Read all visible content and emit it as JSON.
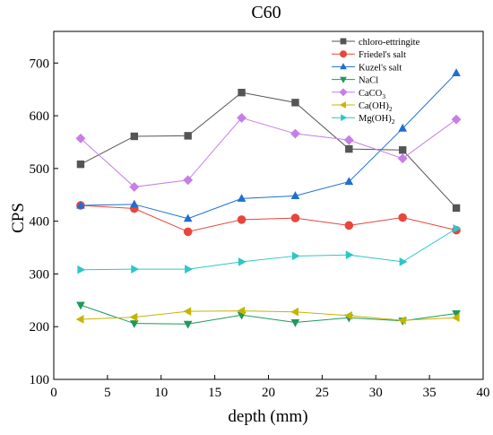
{
  "chart_data": {
    "type": "line",
    "title": "C60",
    "xlabel": "depth (mm)",
    "ylabel": "CPS",
    "xlim": [
      0,
      40
    ],
    "ylim": [
      100,
      760
    ],
    "xticks": [
      0,
      5,
      10,
      15,
      20,
      25,
      30,
      35,
      40
    ],
    "yticks": [
      100,
      200,
      300,
      400,
      500,
      600,
      700
    ],
    "grid": false,
    "legend_position": "top-right",
    "x": [
      2.5,
      7.5,
      12.5,
      17.5,
      22.5,
      27.5,
      32.5,
      37.5
    ],
    "series": [
      {
        "name": "chloro-ettringite",
        "sub": "",
        "marker": "square",
        "color": "#555555",
        "values": [
          508,
          561,
          562,
          644,
          625,
          537,
          535,
          425
        ]
      },
      {
        "name": "Friedel's salt",
        "sub": "",
        "marker": "circle",
        "color": "#e8463c",
        "values": [
          430,
          424,
          380,
          403,
          406,
          392,
          407,
          383
        ]
      },
      {
        "name": "Kuzel's salt",
        "sub": "",
        "marker": "triangle-up",
        "color": "#1f6fd1",
        "values": [
          430,
          432,
          405,
          443,
          448,
          475,
          576,
          681
        ]
      },
      {
        "name": "NaCl",
        "sub": "",
        "marker": "triangle-down",
        "color": "#1e9a5a",
        "values": [
          241,
          206,
          205,
          222,
          208,
          217,
          211,
          225
        ]
      },
      {
        "name": "CaCO",
        "sub": "3",
        "marker": "diamond",
        "color": "#c77ee8",
        "values": [
          557,
          465,
          478,
          596,
          566,
          554,
          519,
          593
        ]
      },
      {
        "name": "Ca(OH)",
        "sub": "2",
        "marker": "triangle-left",
        "color": "#c8b400",
        "values": [
          214,
          218,
          229,
          230,
          228,
          221,
          212,
          217
        ]
      },
      {
        "name": "Mg(OH)",
        "sub": "2",
        "marker": "triangle-right",
        "color": "#2ec6c6",
        "values": [
          308,
          309,
          309,
          323,
          334,
          336,
          323,
          386
        ]
      }
    ]
  }
}
